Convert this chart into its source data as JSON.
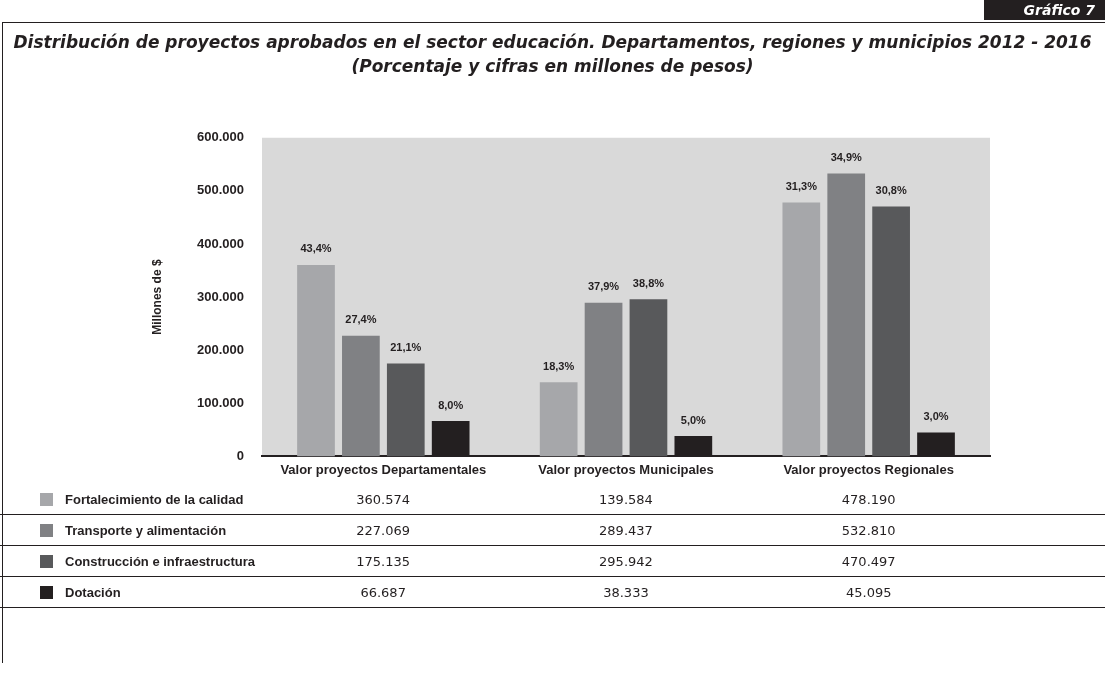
{
  "chart_data": {
    "type": "bar",
    "title": "Distribución de proyectos aprobados en el sector educación. Departamentos, regiones y municipios 2012 - 2016",
    "subtitle": "(Porcentaje y cifras en millones de pesos)",
    "ylabel": "Millones de $",
    "annotations": [
      "Gráfico 7",
      "43,4%",
      "27,4%",
      "21,1%",
      "8,0%",
      "18,3%",
      "37,9%",
      "38,8%",
      "5,0%",
      "31,3%",
      "34,9%",
      "30,8%",
      "3,0%"
    ],
    "categories": [
      "Valor proyectos Departamentales",
      "Valor proyectos Municipales",
      "Valor proyectos Regionales"
    ],
    "series": [
      {
        "name": "Fortalecimiento de la calidad",
        "color": "#a6a7aa",
        "values": [
          360574,
          139584,
          478190
        ],
        "value_labels": [
          "360.574",
          "139.584",
          "478.190"
        ]
      },
      {
        "name": "Transporte y alimentación",
        "color": "#808184",
        "values": [
          227069,
          289437,
          532810
        ],
        "value_labels": [
          "227.069",
          "289.437",
          "532.810"
        ]
      },
      {
        "name": "Construcción e infraestructura",
        "color": "#58595b",
        "values": [
          175135,
          295942,
          470497
        ],
        "value_labels": [
          "175.135",
          "295.942",
          "470.497"
        ]
      },
      {
        "name": "Dotación",
        "color": "#231f20",
        "values": [
          66687,
          38333,
          45095
        ],
        "value_labels": [
          "66.687",
          "38.333",
          "45.095"
        ]
      }
    ],
    "ylim": [
      0,
      600000
    ],
    "yticks": [
      {
        "value": 0,
        "label": "0"
      },
      {
        "value": 100000,
        "label": "100.000"
      },
      {
        "value": 200000,
        "label": "200.000"
      },
      {
        "value": 300000,
        "label": "300.000"
      },
      {
        "value": 400000,
        "label": "400.000"
      },
      {
        "value": 500000,
        "label": "500.000"
      },
      {
        "value": 600000,
        "label": "600.000"
      }
    ],
    "grid": false,
    "legend": "bottom"
  }
}
